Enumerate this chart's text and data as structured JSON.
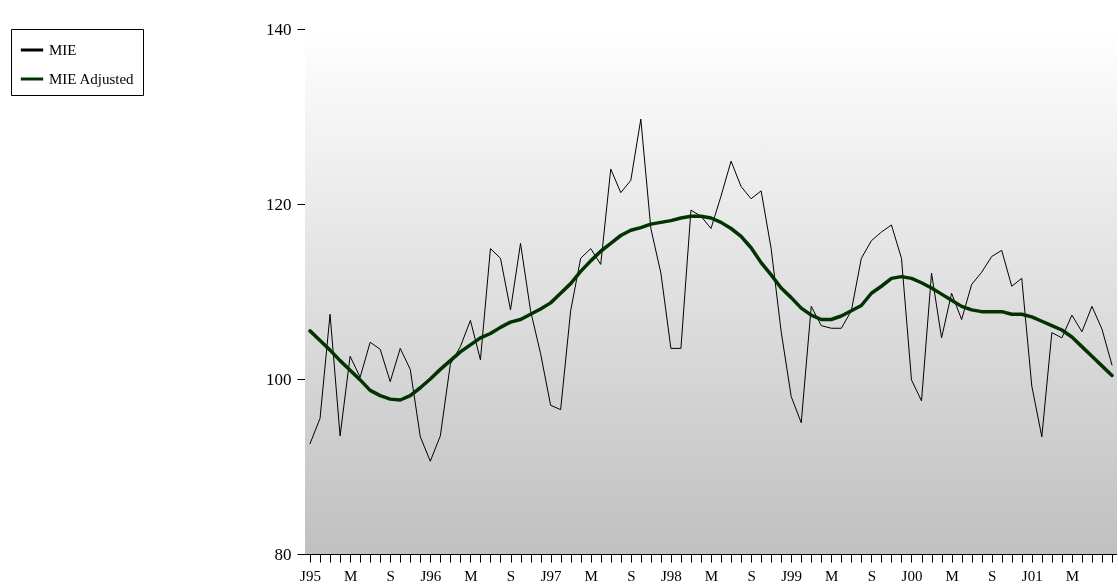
{
  "chart_data": {
    "type": "line",
    "categories": [
      "J95",
      null,
      null,
      null,
      "M",
      null,
      null,
      null,
      "S",
      null,
      null,
      null,
      "J96",
      null,
      null,
      null,
      "M",
      null,
      null,
      null,
      "S",
      null,
      null,
      null,
      "J97",
      null,
      null,
      null,
      "M",
      null,
      null,
      null,
      "S",
      null,
      null,
      null,
      "J98",
      null,
      null,
      null,
      "M",
      null,
      null,
      null,
      "S",
      null,
      null,
      null,
      "J99",
      null,
      null,
      null,
      "M",
      null,
      null,
      null,
      "S",
      null,
      null,
      null,
      "J00",
      null,
      null,
      null,
      "M",
      null,
      null,
      null,
      "S",
      null,
      null,
      null,
      "J01",
      null,
      null,
      null,
      "M",
      null,
      null,
      null,
      null
    ],
    "series": [
      {
        "name": "MIE",
        "color": "#000000",
        "values": [
          92.6,
          95.5,
          107.4,
          93.5,
          102.6,
          100.2,
          104.2,
          103.4,
          99.7,
          103.5,
          101.1,
          93.4,
          90.6,
          93.5,
          101.7,
          103.7,
          106.7,
          102.2,
          114.9,
          113.8,
          107.9,
          115.5,
          107.8,
          102.9,
          97.0,
          96.5,
          107.8,
          113.8,
          114.9,
          113.1,
          124.0,
          121.3,
          122.7,
          129.7,
          117.2,
          112.1,
          103.5,
          103.5,
          119.3,
          118.6,
          117.2,
          120.9,
          124.9,
          122.0,
          120.6,
          121.5,
          114.9,
          105.4,
          98.0,
          95.0,
          108.3,
          106.1,
          105.8,
          105.8,
          107.8,
          113.8,
          115.8,
          116.8,
          117.6,
          113.8,
          99.9,
          97.5,
          112.1,
          104.7,
          109.8,
          106.8,
          110.8,
          112.2,
          114.0,
          114.7,
          110.6,
          111.5,
          99.2,
          93.4,
          105.3,
          104.7,
          107.3,
          105.4,
          108.3,
          105.7,
          101.6
        ]
      },
      {
        "name": "MIE Adjusted",
        "color": "#003300",
        "values": [
          105.5,
          104.4,
          103.3,
          102.1,
          101.0,
          99.9,
          98.7,
          98.1,
          97.7,
          97.6,
          98.1,
          99.0,
          100.0,
          101.1,
          102.1,
          103.1,
          103.9,
          104.7,
          105.2,
          105.9,
          106.5,
          106.8,
          107.4,
          108.0,
          108.7,
          109.8,
          110.9,
          112.3,
          113.5,
          114.6,
          115.5,
          116.4,
          117.0,
          117.3,
          117.7,
          117.9,
          118.1,
          118.4,
          118.6,
          118.6,
          118.4,
          117.9,
          117.2,
          116.3,
          115.0,
          113.3,
          111.9,
          110.4,
          109.3,
          108.1,
          107.3,
          106.8,
          106.8,
          107.2,
          107.8,
          108.4,
          109.8,
          110.6,
          111.5,
          111.7,
          111.5,
          111.0,
          110.4,
          109.7,
          109.0,
          108.3,
          107.9,
          107.7,
          107.7,
          107.7,
          107.4,
          107.4,
          107.1,
          106.6,
          106.1,
          105.6,
          104.8,
          103.7,
          102.6,
          101.5,
          100.4
        ]
      }
    ],
    "ylim": [
      80,
      140
    ],
    "yticks": [
      80,
      100,
      120,
      140
    ],
    "legend": "top left",
    "marker": "none",
    "line_style": "solid"
  }
}
